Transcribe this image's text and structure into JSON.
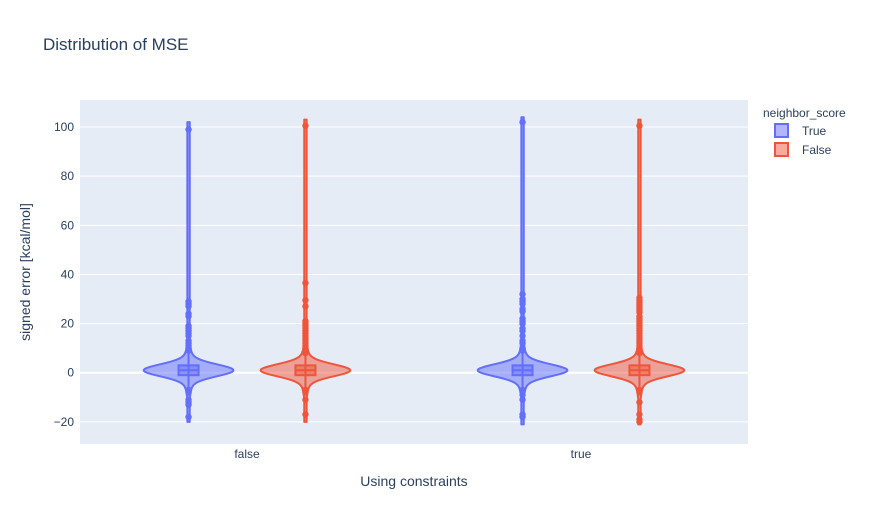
{
  "chart_data": {
    "type": "violin",
    "title": "Distribution of MSE",
    "xlabel": "Using constraints",
    "ylabel": "signed error [kcal/mol]",
    "categories": [
      "false",
      "true"
    ],
    "ylim": [
      -29,
      111
    ],
    "yticks": [
      -20,
      0,
      20,
      40,
      60,
      80,
      100
    ],
    "grid": true,
    "legend": {
      "title": "neighbor_score",
      "placement": "top-right"
    },
    "series": [
      {
        "name": "True",
        "color": "#636efa",
        "fill": "rgba(99,110,250,0.5)",
        "groups": [
          {
            "category": "false",
            "range": [
              -20,
              102
            ],
            "box": {
              "q1": -1,
              "median": 1,
              "q3": 3,
              "whisker_low": -6,
              "whisker_high": 8
            },
            "outliers": [
              99,
              29,
              28,
              27,
              24,
              23,
              19,
              18,
              17,
              16,
              15,
              13,
              12,
              11,
              10,
              9,
              -7,
              -8,
              -11,
              -12,
              -13,
              -18
            ]
          },
          {
            "category": "true",
            "range": [
              -21,
              104
            ],
            "box": {
              "q1": -1,
              "median": 1,
              "q3": 3,
              "whisker_low": -6,
              "whisker_high": 8
            },
            "outliers": [
              102,
              32,
              30,
              29,
              28,
              26,
              25,
              22,
              21,
              20,
              18,
              17,
              15,
              13,
              12,
              10,
              9,
              -7,
              -9,
              -11,
              -17,
              -18
            ]
          }
        ]
      },
      {
        "name": "False",
        "color": "#ef553b",
        "fill": "rgba(239,85,59,0.5)",
        "groups": [
          {
            "category": "false",
            "range": [
              -20,
              103
            ],
            "box": {
              "q1": -1,
              "median": 1,
              "q3": 3,
              "whisker_low": -6,
              "whisker_high": 7
            },
            "outliers": [
              100.5,
              36.5,
              29.5,
              27,
              21,
              20,
              19,
              18,
              17,
              16,
              15,
              14,
              13,
              12,
              11,
              10,
              9,
              8,
              -7,
              -8,
              -11,
              -17
            ]
          },
          {
            "category": "true",
            "range": [
              -21,
              103
            ],
            "box": {
              "q1": -1,
              "median": 1,
              "q3": 3,
              "whisker_low": -6,
              "whisker_high": 7
            },
            "outliers": [
              100.5,
              30.5,
              29.5,
              28.5,
              27.5,
              26.5,
              25.5,
              24.5,
              23,
              22,
              21,
              20,
              19,
              18,
              17,
              16,
              15,
              14,
              13,
              12,
              11,
              10,
              9,
              8,
              -7,
              -8,
              -12,
              -17,
              -19,
              -20
            ]
          }
        ]
      }
    ]
  }
}
